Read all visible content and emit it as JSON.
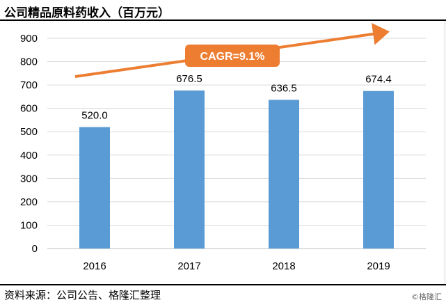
{
  "title": "公司精品原料药收入（百万元）",
  "source": "资料来源：公司公告、格隆汇整理",
  "watermark": "©格隆汇",
  "colors": {
    "bar": "#5b9bd5",
    "arrow": "#ed7d31",
    "grid": "#d9d9d9"
  },
  "chart_data": {
    "type": "bar",
    "categories": [
      "2016",
      "2017",
      "2018",
      "2019"
    ],
    "values": [
      520.0,
      676.5,
      636.5,
      674.4
    ],
    "data_labels": [
      "520.0",
      "676.5",
      "636.5",
      "674.4"
    ],
    "ylim": [
      0,
      900
    ],
    "yticks": [
      0,
      100,
      200,
      300,
      400,
      500,
      600,
      700,
      800,
      900
    ],
    "ytick_labels": [
      "0",
      "100",
      "200",
      "300",
      "400",
      "500",
      "600",
      "700",
      "800",
      "900"
    ],
    "grid": true,
    "annotation": {
      "text": "CAGR=9.1%",
      "kind": "trend-arrow"
    }
  }
}
